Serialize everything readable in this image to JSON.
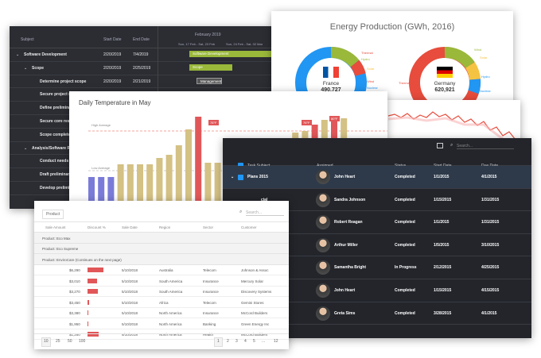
{
  "gantt": {
    "columns": [
      "Subject",
      "Start Date",
      "End Date"
    ],
    "month": "February 2019",
    "weeks": [
      "Sun, 17 Feb - Sat, 23 Feb",
      "Sun, 24 Feb - Sat, 02 Mar"
    ],
    "rows": [
      {
        "subject": "Software Development",
        "start": "2/20/2019",
        "end": "7/4/2019",
        "level": 0,
        "expand": "⌄"
      },
      {
        "subject": "Scope",
        "start": "2/20/2019",
        "end": "2/25/2019",
        "level": 1,
        "expand": "⌄"
      },
      {
        "subject": "Determine project scope",
        "start": "2/20/2019",
        "end": "2/21/2019",
        "level": 2,
        "expand": ""
      },
      {
        "subject": "Secure project sp",
        "start": "",
        "end": "",
        "level": 2,
        "expand": ""
      },
      {
        "subject": "Define prelimina",
        "start": "",
        "end": "",
        "level": 2,
        "expand": ""
      },
      {
        "subject": "Secure core reso",
        "start": "",
        "end": "",
        "level": 2,
        "expand": ""
      },
      {
        "subject": "Scope complete",
        "start": "",
        "end": "",
        "level": 2,
        "expand": ""
      },
      {
        "subject": "Analysis/Software Re",
        "start": "",
        "end": "",
        "level": 1,
        "expand": "⌄"
      },
      {
        "subject": "Conduct needs a",
        "start": "",
        "end": "",
        "level": 2,
        "expand": ""
      },
      {
        "subject": "Draft preliminary",
        "start": "",
        "end": "",
        "level": 2,
        "expand": ""
      },
      {
        "subject": "Develop prelimin",
        "start": "",
        "end": "",
        "level": 2,
        "expand": ""
      }
    ],
    "bars": [
      "Software Development",
      "Scope",
      "Management"
    ]
  },
  "energy": {
    "title": "Energy Production (GWh, 2016)",
    "charts": [
      {
        "country": "France",
        "value": "490,727"
      },
      {
        "country": "Germany",
        "value": "620,921"
      }
    ],
    "labels_france": [
      "Thermal",
      "Hydro",
      "Solar",
      "Wind",
      "Nuclear"
    ],
    "labels_germany": [
      "Wind",
      "Solar",
      "Hydro",
      "Thermal",
      "Nuclear"
    ]
  },
  "temperature": {
    "title": "Daily Temperature in May",
    "high_label": "High Average",
    "low_label": "Low Average",
    "labels": [
      "78°F",
      "76°F",
      "80°F"
    ]
  },
  "tasks": {
    "search_placeholder": "Search...",
    "columns": [
      "Task Subject",
      "Assigned",
      "Status",
      "Start Date",
      "Due Date"
    ],
    "rows": [
      {
        "subject": "Plans 2015",
        "assigned": "John Heart",
        "status": "Completed",
        "start": "1/1/2015",
        "due": "4/1/2015"
      },
      {
        "subject": "cial",
        "assigned": "Sandra Johnson",
        "status": "Completed",
        "start": "1/15/2015",
        "due": "1/31/2015"
      },
      {
        "subject": "eting Plan",
        "assigned": "Robert Reagan",
        "status": "Completed",
        "start": "1/1/2015",
        "due": "1/31/2015"
      },
      {
        "subject": "for 2015",
        "assigned": "Arthur Miller",
        "status": "Completed",
        "start": "1/5/2015",
        "due": "3/10/2015"
      },
      {
        "subject": "rance\nffordable",
        "assigned": "Samantha Bright",
        "status": "In Progress",
        "start": "2/12/2015",
        "due": "4/25/2015"
      },
      {
        "subject": "PO and",
        "assigned": "John Heart",
        "status": "Completed",
        "start": "1/15/2015",
        "due": "4/15/2015"
      },
      {
        "subject": "h Insurance",
        "assigned": "Greta Sims",
        "status": "Completed",
        "start": "3/28/2015",
        "due": "4/1/2015"
      }
    ]
  },
  "sales": {
    "group_by": "Product",
    "search_placeholder": "Search...",
    "columns": [
      "Sale Amount",
      "Discount %",
      "Sale Date",
      "Region",
      "Sector",
      "Customer"
    ],
    "groups": [
      "Product: Eco Max",
      "Product: Eco Supreme",
      "Product: EnviroCare (Continues on the next page)"
    ],
    "rows": [
      {
        "amount": "$6,290",
        "discount": 0.85,
        "date": "5/10/2018",
        "region": "Australia",
        "sector": "Telecom",
        "customer": "Johnson & Assoc"
      },
      {
        "amount": "$3,010",
        "discount": 0.5,
        "date": "5/10/2018",
        "region": "South America",
        "sector": "Insurance",
        "customer": "Mercury Solar"
      },
      {
        "amount": "$3,270",
        "discount": 0.55,
        "date": "5/10/2018",
        "region": "South America",
        "sector": "Insurance",
        "customer": "Discovery Systems"
      },
      {
        "amount": "$3,450",
        "discount": 0.1,
        "date": "5/10/2018",
        "region": "Africa",
        "sector": "Telecom",
        "customer": "Gemini Stores"
      },
      {
        "amount": "$3,380",
        "discount": 0.05,
        "date": "5/10/2018",
        "region": "North America",
        "sector": "Insurance",
        "customer": "McCord Builders"
      },
      {
        "amount": "$1,950",
        "discount": 0.05,
        "date": "5/10/2018",
        "region": "North America",
        "sector": "Banking",
        "customer": "Green Energy Inc"
      },
      {
        "amount": "$1,250",
        "discount": 0.6,
        "date": "5/10/2018",
        "region": "North America",
        "sector": "Health",
        "customer": "McCord Builders"
      }
    ],
    "page_sizes": [
      "10",
      "25",
      "50",
      "100"
    ],
    "pages": [
      "1",
      "2",
      "3",
      "4",
      "5",
      "...",
      "12"
    ]
  }
}
